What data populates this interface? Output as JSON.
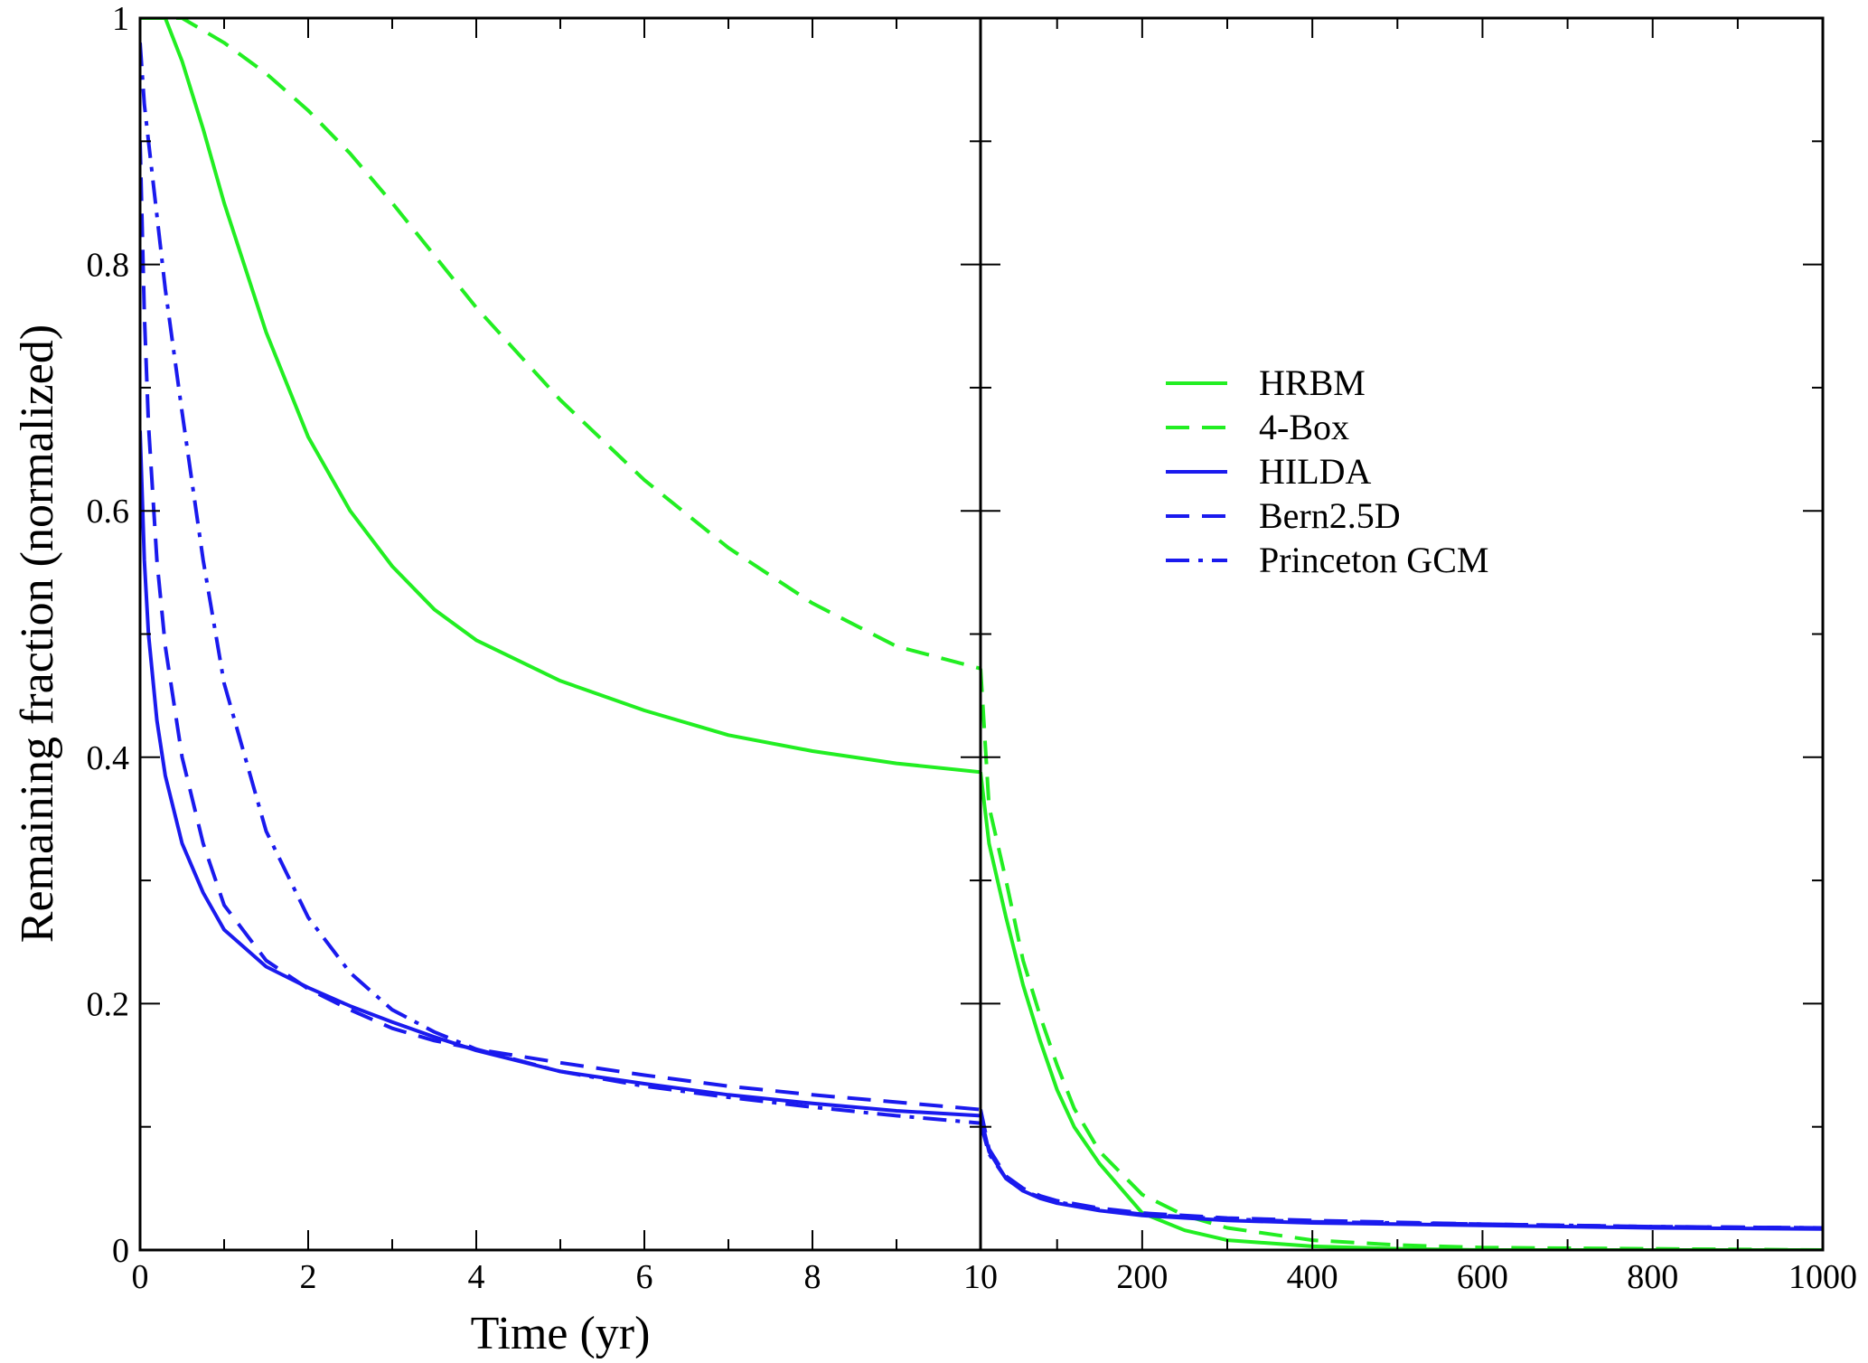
{
  "chart_data": {
    "type": "line",
    "title": "",
    "xlabel": "Time (yr)",
    "ylabel": "Remaining fraction (normalized)",
    "ylim": [
      0,
      1
    ],
    "yticks": [
      "0",
      "0.2",
      "0.4",
      "0.6",
      "0.8",
      "1"
    ],
    "grid": false,
    "legend_position": "center-right",
    "panels": [
      {
        "xlim": [
          0,
          10
        ],
        "xticks": [
          "0",
          "2",
          "4",
          "6",
          "8",
          "10"
        ]
      },
      {
        "xlim": [
          10,
          1000
        ],
        "xticks": [
          "200",
          "400",
          "600",
          "800",
          "1000"
        ]
      }
    ],
    "series": [
      {
        "name": "HRBM",
        "color": "#22ee22",
        "dash": "solid",
        "points": [
          [
            0,
            1
          ],
          [
            0.3,
            1
          ],
          [
            0.5,
            0.965
          ],
          [
            0.75,
            0.91
          ],
          [
            1,
            0.85
          ],
          [
            1.5,
            0.745
          ],
          [
            2,
            0.66
          ],
          [
            2.5,
            0.6
          ],
          [
            3,
            0.555
          ],
          [
            3.5,
            0.52
          ],
          [
            4,
            0.495
          ],
          [
            5,
            0.462
          ],
          [
            6,
            0.438
          ],
          [
            7,
            0.418
          ],
          [
            8,
            0.405
          ],
          [
            9,
            0.395
          ],
          [
            10,
            0.388
          ],
          [
            20,
            0.33
          ],
          [
            40,
            0.27
          ],
          [
            60,
            0.215
          ],
          [
            80,
            0.17
          ],
          [
            100,
            0.13
          ],
          [
            120,
            0.1
          ],
          [
            150,
            0.07
          ],
          [
            200,
            0.03
          ],
          [
            250,
            0.016
          ],
          [
            300,
            0.008
          ],
          [
            400,
            0.003
          ],
          [
            500,
            0.001
          ],
          [
            600,
            0
          ],
          [
            1000,
            0
          ]
        ]
      },
      {
        "name": "4-Box",
        "color": "#22ee22",
        "dash": "dashed",
        "points": [
          [
            0,
            1
          ],
          [
            0.5,
            1
          ],
          [
            1,
            0.98
          ],
          [
            1.5,
            0.955
          ],
          [
            2,
            0.925
          ],
          [
            2.5,
            0.89
          ],
          [
            3,
            0.85
          ],
          [
            4,
            0.765
          ],
          [
            5,
            0.69
          ],
          [
            6,
            0.625
          ],
          [
            7,
            0.57
          ],
          [
            8,
            0.525
          ],
          [
            9,
            0.49
          ],
          [
            10,
            0.472
          ],
          [
            12,
            0.45
          ],
          [
            20,
            0.36
          ],
          [
            40,
            0.3
          ],
          [
            60,
            0.235
          ],
          [
            80,
            0.19
          ],
          [
            100,
            0.15
          ],
          [
            120,
            0.115
          ],
          [
            150,
            0.08
          ],
          [
            200,
            0.045
          ],
          [
            250,
            0.028
          ],
          [
            300,
            0.018
          ],
          [
            400,
            0.008
          ],
          [
            500,
            0.004
          ],
          [
            600,
            0.002
          ],
          [
            1000,
            0
          ]
        ]
      },
      {
        "name": "HILDA",
        "color": "#1a1aee",
        "dash": "solid",
        "points": [
          [
            0,
            0.665
          ],
          [
            0.05,
            0.56
          ],
          [
            0.1,
            0.5
          ],
          [
            0.2,
            0.43
          ],
          [
            0.3,
            0.385
          ],
          [
            0.5,
            0.33
          ],
          [
            0.75,
            0.29
          ],
          [
            1,
            0.26
          ],
          [
            1.5,
            0.23
          ],
          [
            2,
            0.213
          ],
          [
            2.5,
            0.198
          ],
          [
            3,
            0.185
          ],
          [
            3.5,
            0.173
          ],
          [
            4,
            0.162
          ],
          [
            5,
            0.145
          ],
          [
            6,
            0.135
          ],
          [
            7,
            0.126
          ],
          [
            8,
            0.119
          ],
          [
            9,
            0.113
          ],
          [
            10,
            0.109
          ],
          [
            20,
            0.08
          ],
          [
            40,
            0.058
          ],
          [
            60,
            0.048
          ],
          [
            80,
            0.042
          ],
          [
            100,
            0.038
          ],
          [
            150,
            0.032
          ],
          [
            200,
            0.028
          ],
          [
            300,
            0.024
          ],
          [
            400,
            0.022
          ],
          [
            600,
            0.02
          ],
          [
            800,
            0.018
          ],
          [
            1000,
            0.017
          ]
        ]
      },
      {
        "name": "Bern2.5D",
        "color": "#1a1aee",
        "dash": "dashed",
        "points": [
          [
            0,
            0.9
          ],
          [
            0.05,
            0.76
          ],
          [
            0.1,
            0.67
          ],
          [
            0.2,
            0.56
          ],
          [
            0.3,
            0.49
          ],
          [
            0.5,
            0.4
          ],
          [
            0.75,
            0.33
          ],
          [
            1,
            0.28
          ],
          [
            1.5,
            0.235
          ],
          [
            2,
            0.212
          ],
          [
            2.5,
            0.195
          ],
          [
            3,
            0.18
          ],
          [
            3.5,
            0.17
          ],
          [
            4,
            0.163
          ],
          [
            5,
            0.152
          ],
          [
            6,
            0.142
          ],
          [
            7,
            0.133
          ],
          [
            8,
            0.126
          ],
          [
            9,
            0.12
          ],
          [
            10,
            0.114
          ],
          [
            20,
            0.082
          ],
          [
            40,
            0.06
          ],
          [
            60,
            0.05
          ],
          [
            80,
            0.044
          ],
          [
            100,
            0.04
          ],
          [
            150,
            0.034
          ],
          [
            200,
            0.03
          ],
          [
            300,
            0.026
          ],
          [
            400,
            0.024
          ],
          [
            600,
            0.021
          ],
          [
            800,
            0.019
          ],
          [
            1000,
            0.018
          ]
        ]
      },
      {
        "name": "Princeton GCM",
        "color": "#1a1aee",
        "dash": "dashdot",
        "points": [
          [
            0,
            0.98
          ],
          [
            0.05,
            0.93
          ],
          [
            0.1,
            0.9
          ],
          [
            0.2,
            0.84
          ],
          [
            0.3,
            0.78
          ],
          [
            0.5,
            0.68
          ],
          [
            0.75,
            0.56
          ],
          [
            1,
            0.46
          ],
          [
            1.5,
            0.34
          ],
          [
            2,
            0.27
          ],
          [
            2.5,
            0.225
          ],
          [
            3,
            0.195
          ],
          [
            3.5,
            0.177
          ],
          [
            4,
            0.163
          ],
          [
            5,
            0.145
          ],
          [
            6,
            0.133
          ],
          [
            7,
            0.124
          ],
          [
            8,
            0.116
          ],
          [
            9,
            0.109
          ],
          [
            10,
            0.103
          ],
          [
            20,
            0.078
          ],
          [
            40,
            0.058
          ],
          [
            60,
            0.048
          ],
          [
            80,
            0.043
          ],
          [
            100,
            0.039
          ],
          [
            150,
            0.033
          ],
          [
            200,
            0.029
          ],
          [
            300,
            0.025
          ],
          [
            400,
            0.023
          ],
          [
            600,
            0.021
          ],
          [
            800,
            0.019
          ],
          [
            1000,
            0.018
          ]
        ]
      }
    ]
  }
}
